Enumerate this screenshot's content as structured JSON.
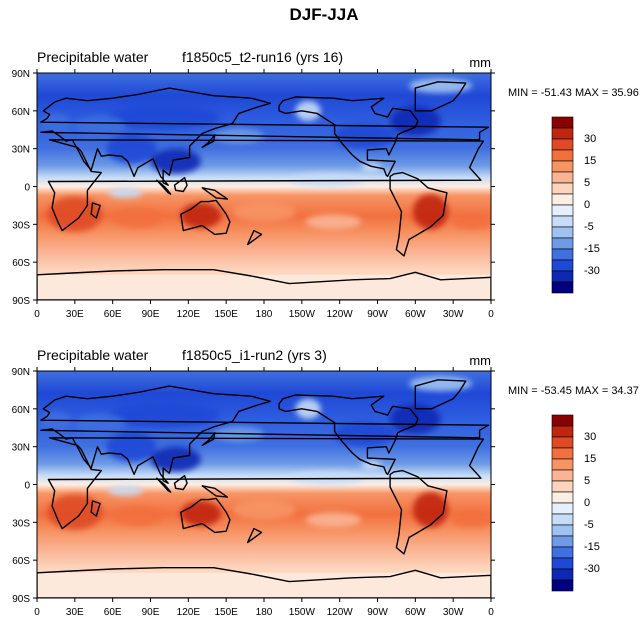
{
  "figure": {
    "title": "DJF-JJA"
  },
  "colorbar": {
    "labels": [
      "30",
      "15",
      "5",
      "0",
      "-5",
      "-15",
      "-30"
    ],
    "colors": [
      "#8b0000",
      "#c0250f",
      "#de4a26",
      "#f2703f",
      "#f79464",
      "#fab494",
      "#fdd5bd",
      "#fdeee4",
      "#e6f0fc",
      "#c6dcf7",
      "#9fc2f1",
      "#6f9be6",
      "#3f6fe0",
      "#1f48d6",
      "#0f28b4",
      "#000080"
    ]
  },
  "palette": {
    "ocean": "#fde8dc",
    "coast": "#000000"
  },
  "xticks": [
    "0",
    "30E",
    "60E",
    "90E",
    "120E",
    "150E",
    "180",
    "150W",
    "120W",
    "90W",
    "60W",
    "30W",
    "0"
  ],
  "yticks": [
    "90N",
    "60N",
    "30N",
    "0",
    "30S",
    "60S",
    "90S"
  ],
  "panels": [
    {
      "variable": "Precipitable water",
      "case": "f1850c5_t2-run16 (yrs 16)",
      "units": "mm",
      "stats": "MIN = -51.43 MAX =  35.96"
    },
    {
      "variable": "Precipitable water",
      "case": "f1850c5_i1-run2 (yrs 3)",
      "units": "mm",
      "stats": "MIN = -53.45 MAX =  34.37"
    }
  ],
  "chart_data": [
    {
      "type": "heatmap",
      "title": "Precipitable water  f1850c5_t2-run16 (yrs 16)",
      "units": "mm",
      "min": -51.43,
      "max": 35.96,
      "x_ticks": [
        "0",
        "30E",
        "60E",
        "90E",
        "120E",
        "150E",
        "180",
        "150W",
        "120W",
        "90W",
        "60W",
        "30W",
        "0"
      ],
      "y_ticks": [
        "90N",
        "60N",
        "30N",
        "0",
        "30S",
        "60S",
        "90S"
      ],
      "xlim": [
        0,
        360
      ],
      "ylim": [
        -90,
        90
      ],
      "contour_levels": [
        -30,
        -15,
        -5,
        0,
        5,
        15,
        30
      ]
    },
    {
      "type": "heatmap",
      "title": "Precipitable water  f1850c5_i1-run2 (yrs 3)",
      "units": "mm",
      "min": -53.45,
      "max": 34.37,
      "x_ticks": [
        "0",
        "30E",
        "60E",
        "90E",
        "120E",
        "150E",
        "180",
        "150W",
        "120W",
        "90W",
        "60W",
        "30W",
        "0"
      ],
      "y_ticks": [
        "90N",
        "60N",
        "30N",
        "0",
        "30S",
        "60S",
        "90S"
      ],
      "xlim": [
        0,
        360
      ],
      "ylim": [
        -90,
        90
      ],
      "contour_levels": [
        -30,
        -15,
        -5,
        0,
        5,
        15,
        30
      ]
    }
  ]
}
